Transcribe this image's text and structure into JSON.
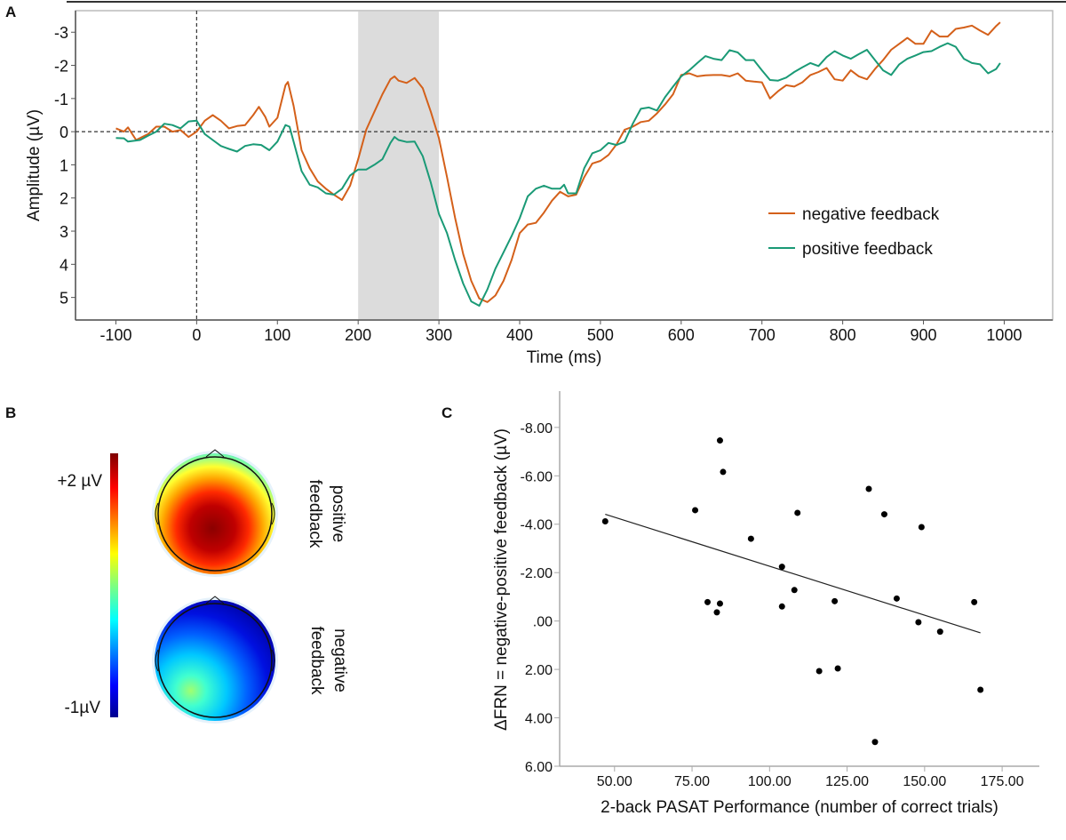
{
  "panels": {
    "a": {
      "letter": "A"
    },
    "b": {
      "letter": "B",
      "colorbar_max_label": "+2 µV",
      "colorbar_min_label": "-1µV",
      "map_labels": [
        [
          "positive",
          "feedback"
        ],
        [
          "negative",
          "feedback"
        ]
      ],
      "colormap": "jet"
    },
    "c": {
      "letter": "C"
    }
  },
  "chart_data": [
    {
      "type": "line",
      "xlabel": "Time (ms)",
      "ylabel": "Amplitude (µV)",
      "xlim": [
        -150,
        1060
      ],
      "ylim": [
        5.68,
        -3.65
      ],
      "y_inverted": true,
      "xticks": [
        -100,
        0,
        100,
        200,
        300,
        400,
        500,
        600,
        700,
        800,
        900,
        1000
      ],
      "yticks": [
        -3,
        -2,
        -1,
        0,
        1,
        2,
        3,
        4,
        5
      ],
      "reference_lines": {
        "y": 0,
        "x": 0,
        "style": "dashed"
      },
      "shaded_window": [
        200,
        300
      ],
      "shade_color": "#dcdcdc",
      "legend": "right",
      "series": [
        {
          "name": "negative feedback",
          "color": "#d4601a",
          "points": [
            [
              -100,
              -0.1
            ],
            [
              -90,
              0
            ],
            [
              -85,
              -0.13
            ],
            [
              -75,
              0.25
            ],
            [
              -60,
              0.07
            ],
            [
              -50,
              -0.15
            ],
            [
              -40,
              -0.15
            ],
            [
              -30,
              0
            ],
            [
              -20,
              -0.05
            ],
            [
              -10,
              0.16
            ],
            [
              0,
              0
            ],
            [
              10,
              -0.33
            ],
            [
              20,
              -0.5
            ],
            [
              30,
              -0.33
            ],
            [
              40,
              -0.1
            ],
            [
              50,
              -0.17
            ],
            [
              60,
              -0.2
            ],
            [
              70,
              -0.5
            ],
            [
              77,
              -0.75
            ],
            [
              85,
              -0.45
            ],
            [
              90,
              -0.15
            ],
            [
              100,
              -0.42
            ],
            [
              110,
              -1.4
            ],
            [
              113,
              -1.5
            ],
            [
              120,
              -0.78
            ],
            [
              130,
              0.56
            ],
            [
              140,
              1.1
            ],
            [
              150,
              1.5
            ],
            [
              160,
              1.72
            ],
            [
              170,
              1.9
            ],
            [
              180,
              2.06
            ],
            [
              190,
              1.63
            ],
            [
              200,
              0.83
            ],
            [
              210,
              -0.06
            ],
            [
              220,
              -0.6
            ],
            [
              230,
              -1.13
            ],
            [
              240,
              -1.58
            ],
            [
              245,
              -1.67
            ],
            [
              250,
              -1.54
            ],
            [
              260,
              -1.47
            ],
            [
              270,
              -1.62
            ],
            [
              280,
              -1.31
            ],
            [
              290,
              -0.6
            ],
            [
              300,
              0.2
            ],
            [
              310,
              1.37
            ],
            [
              320,
              2.6
            ],
            [
              330,
              3.69
            ],
            [
              340,
              4.5
            ],
            [
              350,
              5.03
            ],
            [
              360,
              5.14
            ],
            [
              370,
              4.94
            ],
            [
              380,
              4.5
            ],
            [
              390,
              3.87
            ],
            [
              400,
              3.06
            ],
            [
              410,
              2.8
            ],
            [
              420,
              2.75
            ],
            [
              430,
              2.44
            ],
            [
              440,
              2.08
            ],
            [
              450,
              1.81
            ],
            [
              460,
              1.95
            ],
            [
              470,
              1.9
            ],
            [
              480,
              1.37
            ],
            [
              490,
              0.96
            ],
            [
              500,
              0.88
            ],
            [
              510,
              0.7
            ],
            [
              520,
              0.38
            ],
            [
              530,
              -0.06
            ],
            [
              540,
              -0.15
            ],
            [
              550,
              -0.29
            ],
            [
              560,
              -0.33
            ],
            [
              570,
              -0.55
            ],
            [
              580,
              -0.82
            ],
            [
              590,
              -1.13
            ],
            [
              600,
              -1.71
            ],
            [
              610,
              -1.76
            ],
            [
              620,
              -1.67
            ],
            [
              630,
              -1.7
            ],
            [
              640,
              -1.71
            ],
            [
              650,
              -1.71
            ],
            [
              660,
              -1.67
            ],
            [
              670,
              -1.76
            ],
            [
              680,
              -1.54
            ],
            [
              690,
              -1.51
            ],
            [
              700,
              -1.49
            ],
            [
              710,
              -1.0
            ],
            [
              720,
              -1.22
            ],
            [
              730,
              -1.4
            ],
            [
              740,
              -1.36
            ],
            [
              750,
              -1.49
            ],
            [
              760,
              -1.71
            ],
            [
              770,
              -1.8
            ],
            [
              780,
              -1.92
            ],
            [
              790,
              -1.58
            ],
            [
              800,
              -1.54
            ],
            [
              810,
              -1.85
            ],
            [
              820,
              -1.67
            ],
            [
              830,
              -1.58
            ],
            [
              840,
              -1.89
            ],
            [
              850,
              -2.16
            ],
            [
              860,
              -2.47
            ],
            [
              870,
              -2.65
            ],
            [
              880,
              -2.83
            ],
            [
              890,
              -2.65
            ],
            [
              900,
              -2.65
            ],
            [
              910,
              -3.05
            ],
            [
              920,
              -2.87
            ],
            [
              930,
              -2.87
            ],
            [
              940,
              -3.1
            ],
            [
              950,
              -3.14
            ],
            [
              960,
              -3.2
            ],
            [
              970,
              -3.05
            ],
            [
              980,
              -2.92
            ],
            [
              990,
              -3.19
            ],
            [
              995,
              -3.3
            ]
          ]
        },
        {
          "name": "positive feedback",
          "color": "#1a9a76",
          "points": [
            [
              -100,
              0.19
            ],
            [
              -90,
              0.2
            ],
            [
              -85,
              0.3
            ],
            [
              -70,
              0.25
            ],
            [
              -60,
              0.12
            ],
            [
              -50,
              0
            ],
            [
              -40,
              -0.24
            ],
            [
              -30,
              -0.2
            ],
            [
              -20,
              -0.1
            ],
            [
              -10,
              -0.31
            ],
            [
              0,
              -0.33
            ],
            [
              10,
              0.07
            ],
            [
              20,
              0.25
            ],
            [
              30,
              0.43
            ],
            [
              40,
              0.52
            ],
            [
              50,
              0.6
            ],
            [
              60,
              0.43
            ],
            [
              70,
              0.38
            ],
            [
              80,
              0.4
            ],
            [
              90,
              0.56
            ],
            [
              100,
              0.3
            ],
            [
              110,
              -0.2
            ],
            [
              115,
              -0.15
            ],
            [
              120,
              0.3
            ],
            [
              130,
              1.19
            ],
            [
              140,
              1.6
            ],
            [
              150,
              1.68
            ],
            [
              160,
              1.86
            ],
            [
              170,
              1.9
            ],
            [
              180,
              1.72
            ],
            [
              190,
              1.32
            ],
            [
              200,
              1.14
            ],
            [
              210,
              1.14
            ],
            [
              220,
              1.0
            ],
            [
              230,
              0.83
            ],
            [
              240,
              0.34
            ],
            [
              245,
              0.16
            ],
            [
              250,
              0.25
            ],
            [
              260,
              0.31
            ],
            [
              270,
              0.3
            ],
            [
              280,
              0.74
            ],
            [
              290,
              1.54
            ],
            [
              300,
              2.48
            ],
            [
              310,
              3.06
            ],
            [
              320,
              3.87
            ],
            [
              330,
              4.58
            ],
            [
              340,
              5.12
            ],
            [
              350,
              5.25
            ],
            [
              360,
              4.76
            ],
            [
              370,
              4.13
            ],
            [
              380,
              3.64
            ],
            [
              390,
              3.15
            ],
            [
              400,
              2.61
            ],
            [
              410,
              1.95
            ],
            [
              420,
              1.72
            ],
            [
              430,
              1.63
            ],
            [
              440,
              1.72
            ],
            [
              450,
              1.72
            ],
            [
              455,
              1.6
            ],
            [
              460,
              1.86
            ],
            [
              470,
              1.86
            ],
            [
              480,
              1.1
            ],
            [
              490,
              0.65
            ],
            [
              500,
              0.56
            ],
            [
              510,
              0.34
            ],
            [
              520,
              0.4
            ],
            [
              530,
              0.3
            ],
            [
              540,
              -0.24
            ],
            [
              550,
              -0.69
            ],
            [
              560,
              -0.73
            ],
            [
              570,
              -0.64
            ],
            [
              580,
              -1.04
            ],
            [
              590,
              -1.36
            ],
            [
              600,
              -1.67
            ],
            [
              610,
              -1.85
            ],
            [
              620,
              -2.07
            ],
            [
              630,
              -2.28
            ],
            [
              640,
              -2.2
            ],
            [
              650,
              -2.16
            ],
            [
              660,
              -2.46
            ],
            [
              670,
              -2.39
            ],
            [
              680,
              -2.16
            ],
            [
              690,
              -2.16
            ],
            [
              700,
              -1.85
            ],
            [
              710,
              -1.56
            ],
            [
              720,
              -1.54
            ],
            [
              730,
              -1.63
            ],
            [
              740,
              -1.8
            ],
            [
              750,
              -1.94
            ],
            [
              760,
              -2.07
            ],
            [
              770,
              -1.98
            ],
            [
              780,
              -2.25
            ],
            [
              790,
              -2.43
            ],
            [
              800,
              -2.3
            ],
            [
              810,
              -2.2
            ],
            [
              820,
              -2.34
            ],
            [
              830,
              -2.47
            ],
            [
              840,
              -2.16
            ],
            [
              850,
              -1.85
            ],
            [
              860,
              -1.71
            ],
            [
              870,
              -2.03
            ],
            [
              880,
              -2.2
            ],
            [
              890,
              -2.3
            ],
            [
              900,
              -2.4
            ],
            [
              910,
              -2.43
            ],
            [
              920,
              -2.56
            ],
            [
              930,
              -2.67
            ],
            [
              940,
              -2.56
            ],
            [
              950,
              -2.2
            ],
            [
              960,
              -2.07
            ],
            [
              970,
              -2.03
            ],
            [
              980,
              -1.76
            ],
            [
              990,
              -1.89
            ],
            [
              995,
              -2.07
            ]
          ]
        }
      ]
    },
    {
      "type": "scatter",
      "xlabel": "2-back PASAT Performance (number of correct trials)",
      "ylabel": "ΔFRN = negative-positive feedback (µV)",
      "xlim": [
        32.3,
        187
      ],
      "ylim": [
        6.0,
        -9.5
      ],
      "y_inverted": true,
      "xticks": [
        "50.00",
        "75.00",
        "100.00",
        "125.00",
        "150.00",
        "175.00"
      ],
      "xtick_values": [
        50,
        75,
        100,
        125,
        150,
        175
      ],
      "yticks": [
        "-8.00",
        "-6.00",
        "-4.00",
        "-2.00",
        ".00",
        "2.00",
        "4.00",
        "6.00"
      ],
      "ytick_values": [
        -8,
        -6,
        -4,
        -2,
        0,
        2,
        4,
        6
      ],
      "points": [
        [
          47,
          -4.12
        ],
        [
          76,
          -4.58
        ],
        [
          84,
          -7.46
        ],
        [
          85,
          -6.16
        ],
        [
          80,
          -0.78
        ],
        [
          84,
          -0.72
        ],
        [
          83,
          -0.36
        ],
        [
          94,
          -3.4
        ],
        [
          104,
          -2.24
        ],
        [
          104,
          -0.6
        ],
        [
          108,
          -1.28
        ],
        [
          109,
          -4.47
        ],
        [
          116,
          2.07
        ],
        [
          121,
          -0.82
        ],
        [
          122,
          1.96
        ],
        [
          132,
          -5.46
        ],
        [
          134,
          5.0
        ],
        [
          137,
          -4.41
        ],
        [
          141,
          -0.93
        ],
        [
          148,
          0.05
        ],
        [
          149,
          -3.88
        ],
        [
          155,
          0.44
        ],
        [
          166,
          -0.78
        ],
        [
          168,
          2.84
        ]
      ],
      "fit_line": [
        [
          47,
          -4.41
        ],
        [
          168,
          0.49
        ]
      ]
    }
  ]
}
